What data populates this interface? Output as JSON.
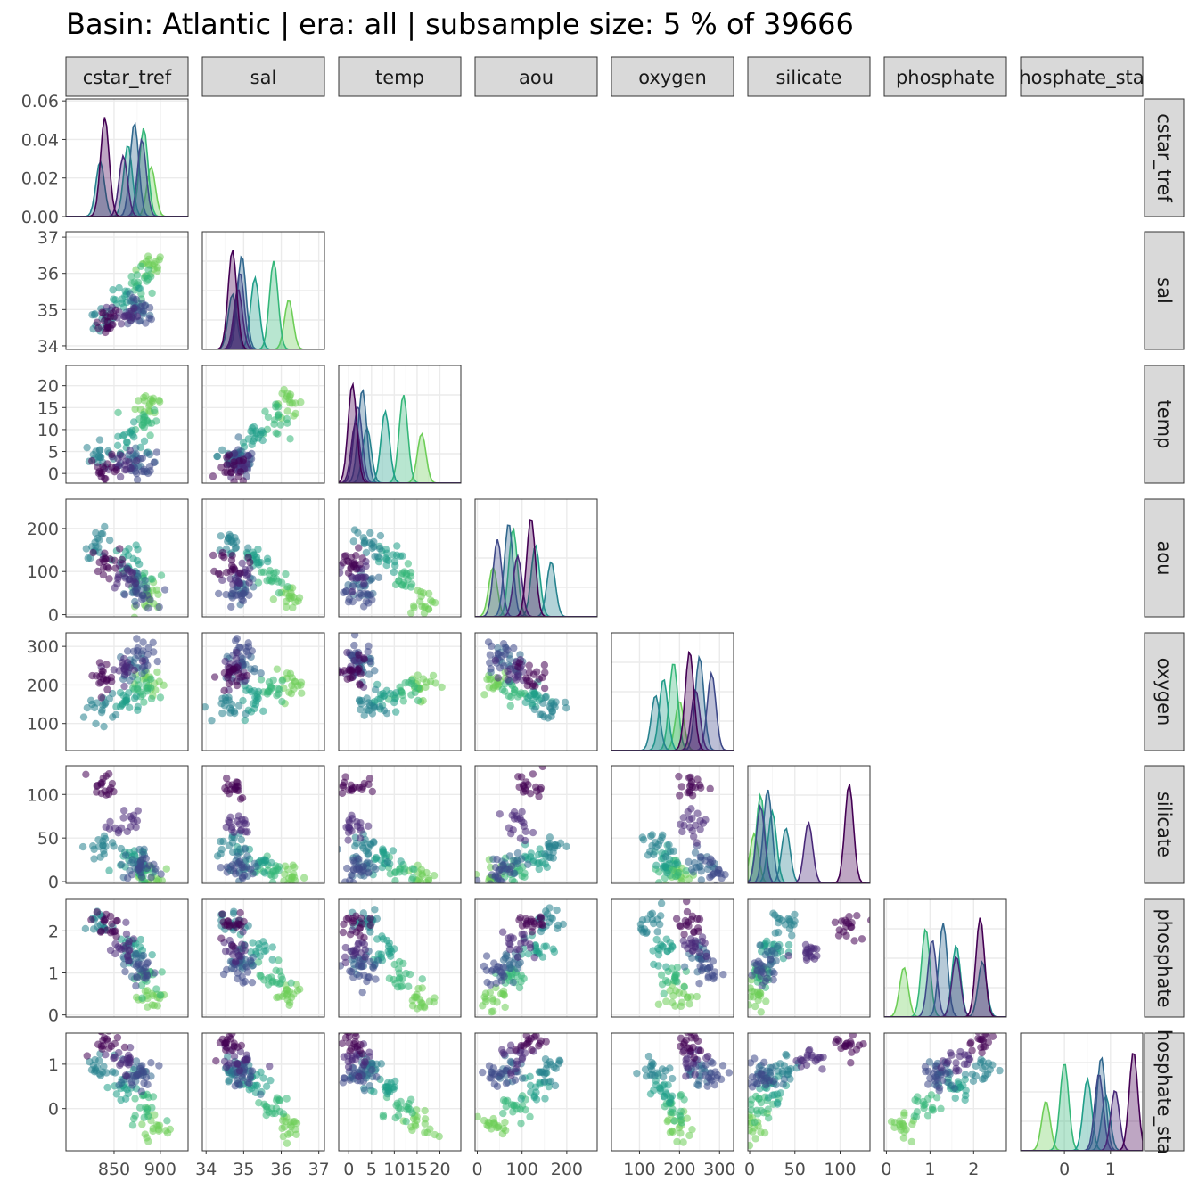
{
  "title": "Basin: Atlantic | era: all | subsample size: 5 % of 39666",
  "chart_data": {
    "type": "scatter",
    "subtype": "pairs-matrix (lower-triangle scatter, diagonal density)",
    "variables": [
      "cstar_tref",
      "sal",
      "temp",
      "aou",
      "oxygen",
      "silicate",
      "phosphate",
      "phosphate_star"
    ],
    "strip_labels": [
      "cstar_tref",
      "sal",
      "temp",
      "aou",
      "oxygen",
      "silicate",
      "phosphate",
      "hosphate_sta"
    ],
    "row_strip_labels": [
      "cstar_tref",
      "sal",
      "temp",
      "aou",
      "oxygen",
      "silicate",
      "phosphate",
      "hosphate_sta"
    ],
    "ranges": {
      "cstar_tref": [
        798,
        930
      ],
      "sal": [
        33.9,
        37.15
      ],
      "temp": [
        -2.2,
        24.6
      ],
      "aou": [
        -5,
        268
      ],
      "oxygen": [
        30,
        335
      ],
      "silicate": [
        -2,
        133
      ],
      "phosphate": [
        -0.05,
        2.75
      ],
      "phosphate_star": [
        -0.95,
        1.7
      ]
    },
    "x_axis_ticks": {
      "cstar_tref": [
        850,
        900
      ],
      "sal": [
        34,
        35,
        36,
        37
      ],
      "temp": [
        0,
        5,
        10,
        15,
        20
      ],
      "aou": [
        0,
        100,
        200
      ],
      "oxygen": [
        100,
        200,
        300
      ],
      "silicate": [
        0,
        50,
        100
      ],
      "phosphate": [
        0,
        1,
        2
      ],
      "phosphate_star": [
        0,
        1
      ]
    },
    "x_axis_tick_labels": {
      "cstar_tref": [
        "850",
        "900"
      ],
      "sal": [
        "34",
        "35",
        "36",
        "37"
      ],
      "temp": [
        "0",
        "5",
        "10",
        "15",
        "20"
      ],
      "aou": [
        "0",
        "100",
        "200"
      ],
      "oxygen": [
        "100",
        "200",
        "300"
      ],
      "silicate": [
        "0",
        "50",
        "100"
      ],
      "phosphate": [
        "0",
        "1",
        "2"
      ],
      "phosphate_star": [
        "0",
        "1"
      ]
    },
    "y_axis": {
      "density_ticks": [
        0.0,
        0.02,
        0.04,
        0.06
      ],
      "density_tick_labels": [
        "0.00",
        "0.02",
        "0.04",
        "0.06"
      ],
      "density_range": [
        0,
        0.061
      ],
      "ticks": {
        "sal": [
          34,
          35,
          36,
          37
        ],
        "temp": [
          0,
          5,
          10,
          15,
          20
        ],
        "aou": [
          0,
          100,
          200
        ],
        "oxygen": [
          100,
          200,
          300
        ],
        "silicate": [
          0,
          50,
          100
        ],
        "phosphate": [
          0,
          1,
          2
        ],
        "phosphate_star": [
          0,
          1
        ]
      },
      "tick_labels": {
        "sal": [
          "34",
          "35",
          "36",
          "37"
        ],
        "temp": [
          "0",
          "5",
          "10",
          "15",
          "20"
        ],
        "aou": [
          "0",
          "100",
          "200"
        ],
        "oxygen": [
          "100",
          "200",
          "300"
        ],
        "silicate": [
          "0",
          "50",
          "100"
        ],
        "phosphate": [
          "0",
          "1",
          "2"
        ],
        "phosphate_star": [
          "0",
          "1"
        ]
      }
    },
    "color_scale": "viridis",
    "colors": [
      "#fde725",
      "#b5de2b",
      "#6ece58",
      "#35b779",
      "#1f9e89",
      "#26828e",
      "#31688e",
      "#3e4989",
      "#482878",
      "#440154"
    ],
    "groups": [
      {
        "name": "g1",
        "centers": {
          "cstar_tref": 890,
          "sal": 36.2,
          "temp": 16,
          "aou": 35,
          "oxygen": 200,
          "silicate": 5,
          "phosphate": 0.4,
          "phosphate_star": -0.4
        }
      },
      {
        "name": "g2",
        "centers": {
          "cstar_tref": 882,
          "sal": 35.8,
          "temp": 12,
          "aou": 80,
          "oxygen": 185,
          "silicate": 12,
          "phosphate": 0.9,
          "phosphate_star": 0.0
        }
      },
      {
        "name": "g3",
        "centers": {
          "cstar_tref": 865,
          "sal": 35.3,
          "temp": 8,
          "aou": 130,
          "oxygen": 160,
          "silicate": 25,
          "phosphate": 1.6,
          "phosphate_star": 0.5
        }
      },
      {
        "name": "g4",
        "centers": {
          "cstar_tref": 835,
          "sal": 34.7,
          "temp": 4,
          "aou": 165,
          "oxygen": 140,
          "silicate": 40,
          "phosphate": 2.2,
          "phosphate_star": 0.9
        }
      },
      {
        "name": "g5",
        "centers": {
          "cstar_tref": 872,
          "sal": 34.95,
          "temp": 3,
          "aou": 70,
          "oxygen": 250,
          "silicate": 20,
          "phosphate": 1.3,
          "phosphate_star": 0.8
        }
      },
      {
        "name": "g6",
        "centers": {
          "cstar_tref": 880,
          "sal": 34.9,
          "temp": 2,
          "aou": 45,
          "oxygen": 280,
          "silicate": 12,
          "phosphate": 1.05,
          "phosphate_star": 0.75
        }
      },
      {
        "name": "g7",
        "centers": {
          "cstar_tref": 860,
          "sal": 34.85,
          "temp": 1.5,
          "aou": 90,
          "oxygen": 240,
          "silicate": 65,
          "phosphate": 1.6,
          "phosphate_star": 1.1
        }
      },
      {
        "name": "g8",
        "centers": {
          "cstar_tref": 840,
          "sal": 34.7,
          "temp": 0.8,
          "aou": 120,
          "oxygen": 225,
          "silicate": 110,
          "phosphate": 2.15,
          "phosphate_star": 1.5
        }
      }
    ]
  }
}
